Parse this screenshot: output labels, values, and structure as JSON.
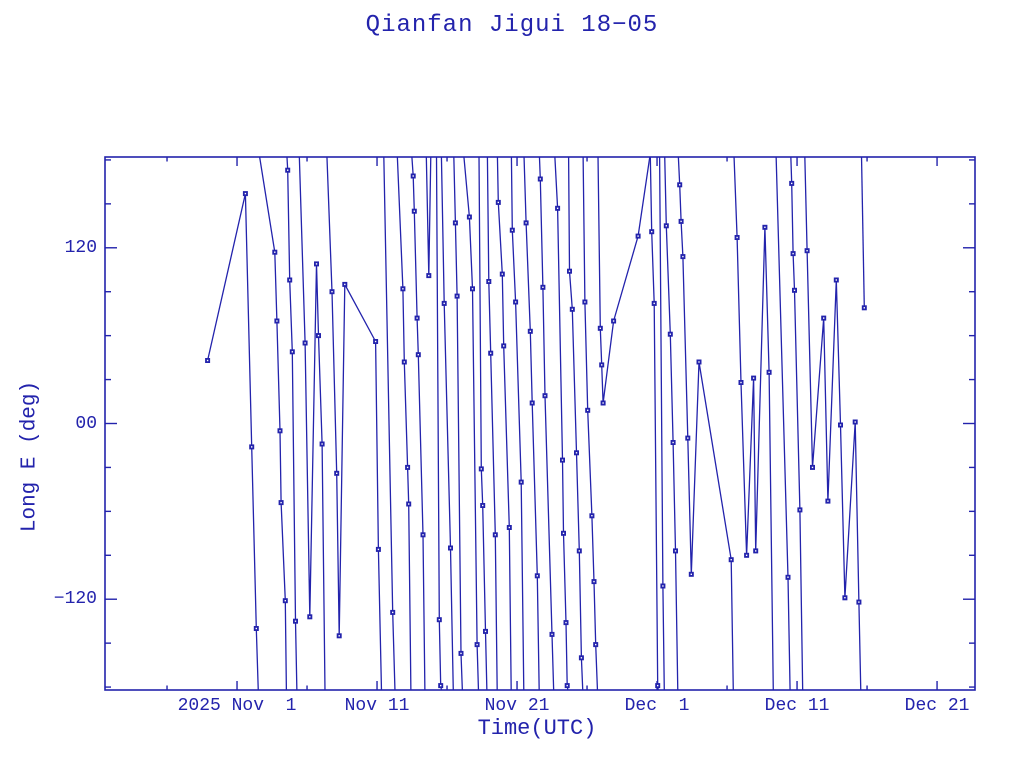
{
  "title": "Qianfan Jigui 18−05",
  "chart_data": {
    "type": "line",
    "title": "Qianfan Jigui 18−05",
    "xlabel": "Time(UTC)",
    "ylabel": "Long E (deg)",
    "legend": "none",
    "grid": false,
    "line_color": "#2323AC",
    "marker": "filled-square",
    "x_unit": "days since 2025 Nov 1 00:00 UTC",
    "xlim_days": [
      -9.43,
      52.71
    ],
    "ylim": [
      -182,
      182
    ],
    "x_major_ticks": [
      {
        "day": 0,
        "label": "2025 Nov  1"
      },
      {
        "day": 10,
        "label": "Nov 11"
      },
      {
        "day": 20,
        "label": "Nov 21"
      },
      {
        "day": 30,
        "label": "Dec  1"
      },
      {
        "day": 40,
        "label": "Dec 11"
      },
      {
        "day": 50,
        "label": "Dec 21"
      }
    ],
    "x_minor_tick_days": [
      -5,
      5,
      15,
      25,
      35,
      45
    ],
    "y_major_ticks": [
      {
        "value": 120,
        "label": "120"
      },
      {
        "value": 0,
        "label": "00"
      },
      {
        "value": -120,
        "label": "−120"
      }
    ],
    "y_minor_tick_values": [
      180,
      150,
      90,
      60,
      30,
      -30,
      -60,
      -90,
      -150,
      -180
    ],
    "segments": [
      [
        [
          -2.1,
          43
        ],
        [
          0.6,
          157
        ],
        [
          1.05,
          -16
        ],
        [
          1.38,
          -140
        ],
        [
          1.52,
          -183
        ]
      ],
      [
        [
          1.6,
          183
        ],
        [
          2.7,
          117
        ],
        [
          2.85,
          70
        ],
        [
          3.07,
          -5
        ],
        [
          3.15,
          -54
        ],
        [
          3.45,
          -121
        ],
        [
          3.53,
          -183
        ]
      ],
      [
        [
          3.56,
          183
        ],
        [
          3.62,
          173
        ],
        [
          3.76,
          98
        ],
        [
          3.95,
          49
        ],
        [
          4.18,
          -135
        ],
        [
          4.28,
          -183
        ]
      ],
      [
        [
          4.45,
          183
        ],
        [
          4.86,
          55
        ],
        [
          5.2,
          -132
        ],
        [
          5.68,
          109
        ],
        [
          5.82,
          60
        ],
        [
          6.08,
          -14
        ],
        [
          6.28,
          -183
        ]
      ],
      [
        [
          6.42,
          183
        ],
        [
          6.78,
          90
        ],
        [
          7.12,
          -34
        ],
        [
          7.3,
          -145
        ],
        [
          7.7,
          95
        ],
        [
          9.9,
          56
        ],
        [
          10.1,
          -86
        ],
        [
          10.32,
          -183
        ]
      ],
      [
        [
          10.48,
          183
        ],
        [
          11.12,
          -129
        ],
        [
          11.28,
          -183
        ]
      ],
      [
        [
          11.45,
          183
        ],
        [
          11.85,
          92
        ],
        [
          11.95,
          42
        ],
        [
          12.18,
          -30
        ],
        [
          12.26,
          -55
        ],
        [
          12.42,
          -183
        ]
      ],
      [
        [
          12.48,
          183
        ],
        [
          12.58,
          169
        ],
        [
          12.66,
          145
        ],
        [
          12.86,
          72
        ],
        [
          12.95,
          47
        ],
        [
          13.28,
          -76
        ],
        [
          13.42,
          -183
        ]
      ],
      [
        [
          13.52,
          183
        ],
        [
          13.7,
          101
        ],
        [
          13.84,
          183
        ]
      ],
      [
        [
          14.25,
          183
        ],
        [
          14.45,
          -134
        ],
        [
          14.55,
          -179
        ],
        [
          14.62,
          -183
        ]
      ],
      [
        [
          14.6,
          183
        ],
        [
          14.8,
          82
        ],
        [
          15.25,
          -85
        ],
        [
          15.45,
          -183
        ]
      ],
      [
        [
          15.48,
          183
        ],
        [
          15.6,
          137
        ],
        [
          15.72,
          87
        ],
        [
          16.0,
          -157
        ],
        [
          16.1,
          -183
        ]
      ],
      [
        [
          16.2,
          183
        ],
        [
          16.6,
          141
        ],
        [
          16.82,
          92
        ],
        [
          17.15,
          -151
        ],
        [
          17.25,
          -183
        ]
      ],
      [
        [
          17.28,
          183
        ],
        [
          17.45,
          -31
        ],
        [
          17.55,
          -56
        ],
        [
          17.75,
          -142
        ],
        [
          17.85,
          -183
        ]
      ],
      [
        [
          17.88,
          183
        ],
        [
          17.98,
          97
        ],
        [
          18.12,
          48
        ],
        [
          18.45,
          -76
        ],
        [
          18.58,
          -183
        ]
      ],
      [
        [
          18.6,
          183
        ],
        [
          18.66,
          151
        ],
        [
          18.95,
          102
        ],
        [
          19.05,
          53
        ],
        [
          19.45,
          -71
        ],
        [
          19.58,
          -183
        ]
      ],
      [
        [
          19.6,
          183
        ],
        [
          19.66,
          132
        ],
        [
          19.9,
          83
        ],
        [
          20.3,
          -40
        ],
        [
          20.48,
          -183
        ]
      ],
      [
        [
          20.5,
          183
        ],
        [
          20.65,
          137
        ],
        [
          20.95,
          63
        ],
        [
          21.08,
          14
        ],
        [
          21.45,
          -104
        ],
        [
          21.58,
          -183
        ]
      ],
      [
        [
          21.6,
          183
        ],
        [
          21.66,
          167
        ],
        [
          21.85,
          93
        ],
        [
          22.0,
          19
        ],
        [
          22.5,
          -144
        ],
        [
          22.62,
          -183
        ]
      ],
      [
        [
          22.7,
          183
        ],
        [
          22.9,
          147
        ],
        [
          23.25,
          -25
        ],
        [
          23.32,
          -75
        ],
        [
          23.5,
          -136
        ],
        [
          23.58,
          -179
        ],
        [
          23.65,
          -183
        ]
      ],
      [
        [
          23.68,
          183
        ],
        [
          23.75,
          104
        ],
        [
          23.95,
          78
        ],
        [
          24.25,
          -20
        ],
        [
          24.45,
          -87
        ],
        [
          24.6,
          -160
        ],
        [
          24.7,
          -183
        ]
      ],
      [
        [
          24.72,
          183
        ],
        [
          24.85,
          83
        ],
        [
          25.05,
          9
        ],
        [
          25.35,
          -63
        ],
        [
          25.5,
          -108
        ],
        [
          25.62,
          -151
        ],
        [
          25.75,
          -183
        ]
      ],
      [
        [
          25.78,
          183
        ],
        [
          25.95,
          65
        ],
        [
          26.05,
          40
        ],
        [
          26.15,
          14
        ],
        [
          26.9,
          70
        ],
        [
          28.65,
          128
        ],
        [
          29.5,
          183
        ]
      ],
      [
        [
          29.52,
          183
        ],
        [
          29.62,
          131
        ],
        [
          29.8,
          82
        ],
        [
          30.05,
          -179
        ],
        [
          30.1,
          -183
        ]
      ],
      [
        [
          30.18,
          183
        ],
        [
          30.42,
          -111
        ],
        [
          30.52,
          -183
        ]
      ],
      [
        [
          30.55,
          183
        ],
        [
          30.66,
          135
        ],
        [
          30.95,
          61
        ],
        [
          31.15,
          -13
        ],
        [
          31.32,
          -87
        ],
        [
          31.48,
          -183
        ]
      ],
      [
        [
          31.52,
          183
        ],
        [
          31.62,
          163
        ],
        [
          31.72,
          138
        ],
        [
          31.85,
          114
        ],
        [
          32.2,
          -10
        ],
        [
          32.45,
          -103
        ],
        [
          33.0,
          42
        ],
        [
          35.3,
          -93
        ],
        [
          35.45,
          -183
        ]
      ],
      [
        [
          35.5,
          183
        ],
        [
          35.72,
          127
        ],
        [
          36.0,
          28
        ],
        [
          36.4,
          -90
        ],
        [
          36.9,
          31
        ],
        [
          37.05,
          -87
        ],
        [
          37.7,
          134
        ],
        [
          38.0,
          35
        ],
        [
          38.3,
          -183
        ]
      ],
      [
        [
          38.5,
          183
        ],
        [
          39.35,
          -105
        ],
        [
          39.5,
          -183
        ]
      ],
      [
        [
          39.55,
          183
        ],
        [
          39.62,
          164
        ],
        [
          39.72,
          116
        ],
        [
          39.82,
          91
        ],
        [
          40.2,
          -59
        ],
        [
          40.4,
          -183
        ]
      ],
      [
        [
          40.55,
          183
        ],
        [
          40.72,
          118
        ],
        [
          41.1,
          -30
        ],
        [
          41.9,
          72
        ],
        [
          42.2,
          -53
        ],
        [
          42.8,
          98
        ],
        [
          43.1,
          -1
        ],
        [
          43.42,
          -119
        ],
        [
          44.15,
          1
        ],
        [
          44.42,
          -122
        ],
        [
          44.55,
          -183
        ]
      ],
      [
        [
          44.6,
          183
        ],
        [
          44.8,
          79
        ]
      ]
    ]
  }
}
